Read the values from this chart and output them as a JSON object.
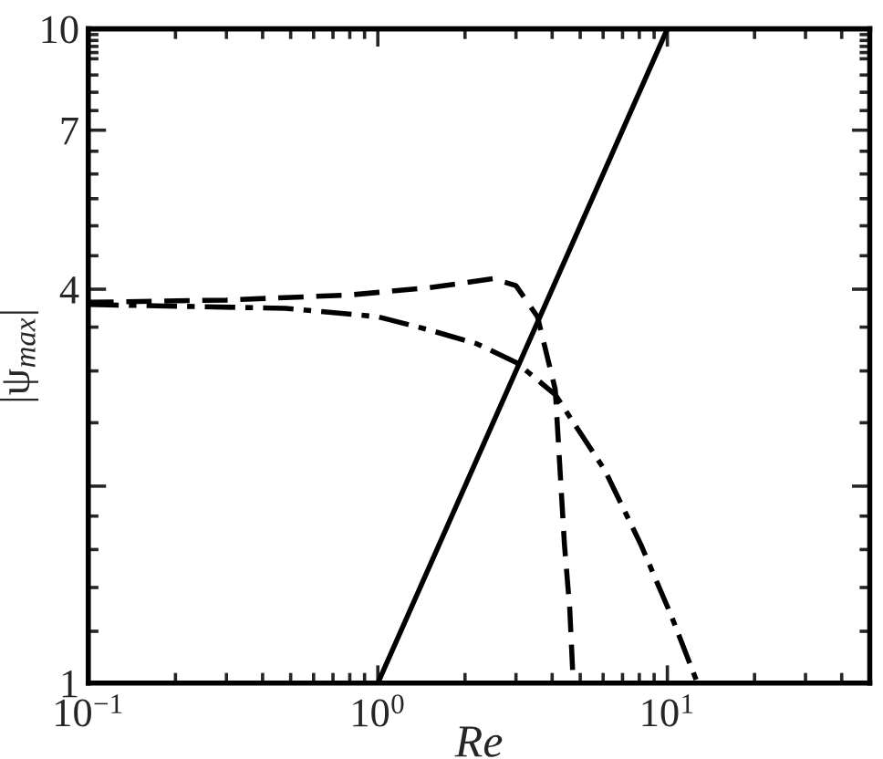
{
  "chart_data": {
    "type": "line",
    "xlabel": "Re",
    "ylabel": "|ψ$_{max}$|",
    "log": "xy",
    "grid": false,
    "legend": false,
    "marker": "none",
    "xlim": [
      0.1,
      50
    ],
    "ylim": [
      1,
      10
    ],
    "xticks": [
      {
        "value": 0.1,
        "label": "10$^{−1}$"
      },
      {
        "value": 1,
        "label": "10$^{0}$"
      },
      {
        "value": 10,
        "label": "10$^{1}$"
      }
    ],
    "yticks": [
      1,
      {
        "value": 2,
        "label": null
      },
      4,
      7,
      10
    ],
    "series": [
      {
        "color": "#000000",
        "line_style": "solid",
        "x": [
          1,
          10
        ],
        "values": [
          1,
          10
        ]
      },
      {
        "color": "#000000",
        "line_style": "dashed",
        "x": [
          0.1,
          0.3,
          0.8,
          1.5,
          2.5,
          3.0,
          3.56,
          4.1,
          4.41,
          4.6,
          4.73
        ],
        "values": [
          3.82,
          3.85,
          3.92,
          4.02,
          4.15,
          4.05,
          3.63,
          2.81,
          1.63,
          1.3,
          1.0
        ]
      },
      {
        "color": "#000000",
        "line_style": "dashdot",
        "x": [
          0.1,
          0.48,
          1.0,
          1.49,
          2.2,
          3.01,
          4.1,
          6.1,
          8.09,
          10.3,
          12.7
        ],
        "values": [
          3.79,
          3.74,
          3.63,
          3.47,
          3.3,
          3.09,
          2.76,
          2.11,
          1.63,
          1.27,
          1.0
        ]
      }
    ]
  }
}
